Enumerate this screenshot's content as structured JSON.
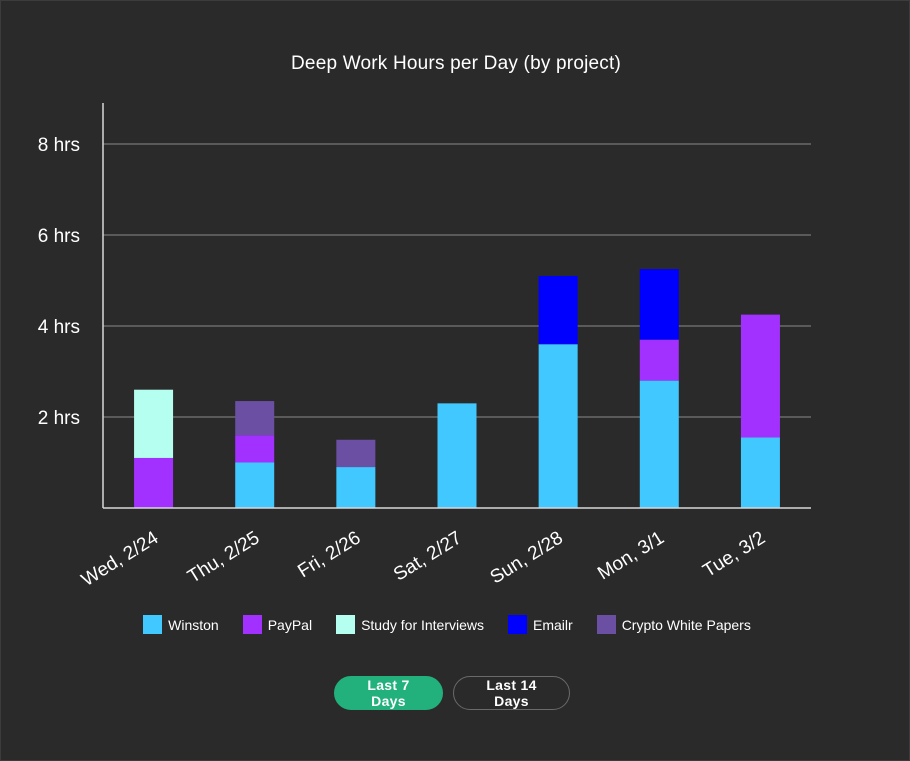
{
  "chart_data": {
    "type": "bar",
    "stacked": true,
    "title": "Deep Work Hours per Day (by project)",
    "categories": [
      "Wed, 2/24",
      "Thu, 2/25",
      "Fri, 2/26",
      "Sat, 2/27",
      "Sun, 2/28",
      "Mon, 3/1",
      "Tue, 3/2"
    ],
    "series": [
      {
        "name": "Winston",
        "color": "#40c8ff",
        "values": [
          0,
          1.0,
          0.9,
          2.3,
          3.6,
          2.8,
          1.55
        ]
      },
      {
        "name": "PayPal",
        "color": "#a230ff",
        "values": [
          1.1,
          0.6,
          0,
          0,
          0,
          0.9,
          2.7
        ]
      },
      {
        "name": "Study for Interviews",
        "color": "#b5fff0",
        "values": [
          1.5,
          0,
          0,
          0,
          0,
          0,
          0
        ]
      },
      {
        "name": "Emailr",
        "color": "#0000ff",
        "values": [
          0,
          0,
          0,
          0,
          1.5,
          1.55,
          0
        ]
      },
      {
        "name": "Crypto White Papers",
        "color": "#6b4fa3",
        "values": [
          0,
          0.75,
          0.6,
          0,
          0,
          0,
          0
        ]
      }
    ],
    "yticks": [
      {
        "value": 2,
        "label": "2 hrs"
      },
      {
        "value": 4,
        "label": "4 hrs"
      },
      {
        "value": 6,
        "label": "6 hrs"
      },
      {
        "value": 8,
        "label": "8 hrs"
      }
    ],
    "ylim": [
      0,
      8.9
    ],
    "grid": true,
    "legend_position": "bottom",
    "xlabel": "",
    "ylabel": ""
  },
  "controls": {
    "range_7_label": "Last 7 Days",
    "range_14_label": "Last 14 Days",
    "active_color": "#22b07c"
  }
}
